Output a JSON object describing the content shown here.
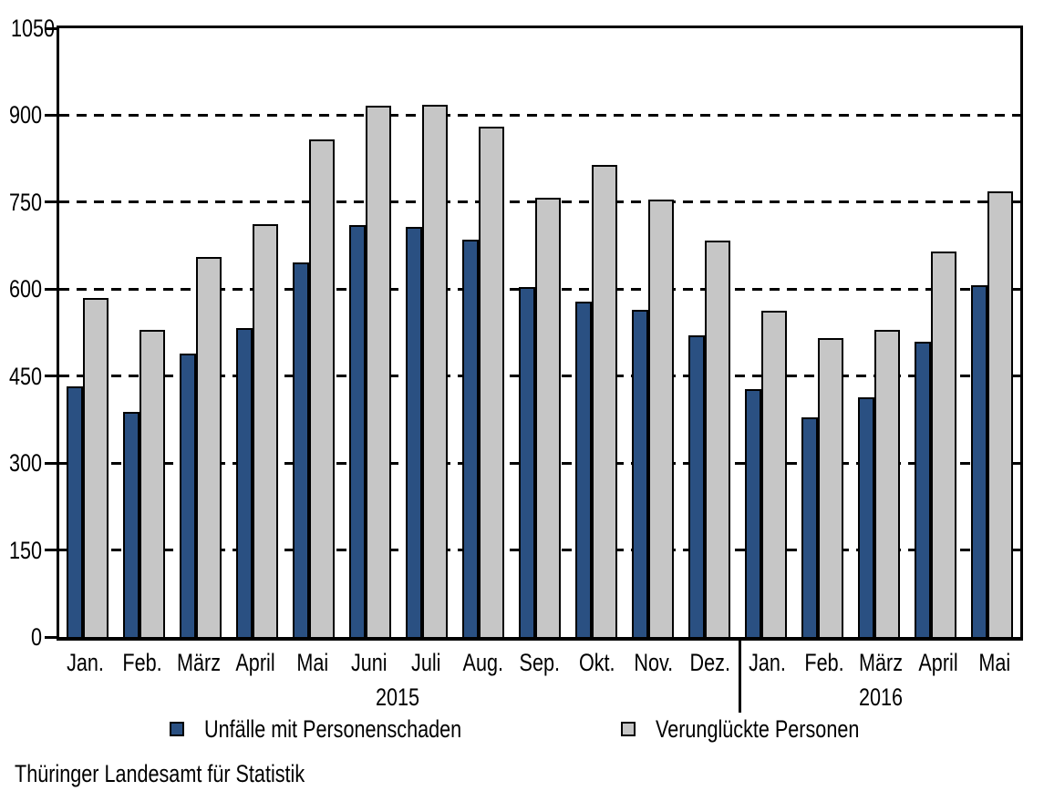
{
  "chart_data": {
    "type": "bar",
    "title": "",
    "categories": [
      "Jan.",
      "Feb.",
      "März",
      "April",
      "Mai",
      "Juni",
      "Juli",
      "Aug.",
      "Sep.",
      "Okt.",
      "Nov.",
      "Dez.",
      "Jan.",
      "Feb.",
      "März",
      "April",
      "Mai"
    ],
    "year_groups": [
      {
        "label": "2015",
        "months": 12
      },
      {
        "label": "2016",
        "months": 5
      }
    ],
    "series": [
      {
        "name": "Unfälle mit Personenschaden",
        "color": "#2a5082",
        "values": [
          433,
          388,
          489,
          533,
          646,
          710,
          707,
          686,
          604,
          579,
          564,
          520,
          428,
          379,
          414,
          509,
          606
        ]
      },
      {
        "name": "Verunglückte Personen",
        "color": "#c6c6c6",
        "values": [
          585,
          529,
          656,
          712,
          859,
          917,
          918,
          881,
          758,
          815,
          754,
          683,
          563,
          516,
          529,
          665,
          768
        ]
      }
    ],
    "ylim": [
      0,
      1050
    ],
    "yticks": [
      0,
      150,
      300,
      450,
      600,
      750,
      900,
      1050
    ],
    "gridlines": [
      150,
      300,
      450,
      600,
      750,
      900
    ],
    "grid_style": "horizontal-dashed",
    "legend_position": "bottom",
    "bar_outline_color": "#000000",
    "axis_color": "#000000"
  },
  "footer": {
    "source": "Thüringer Landesamt für Statistik"
  }
}
